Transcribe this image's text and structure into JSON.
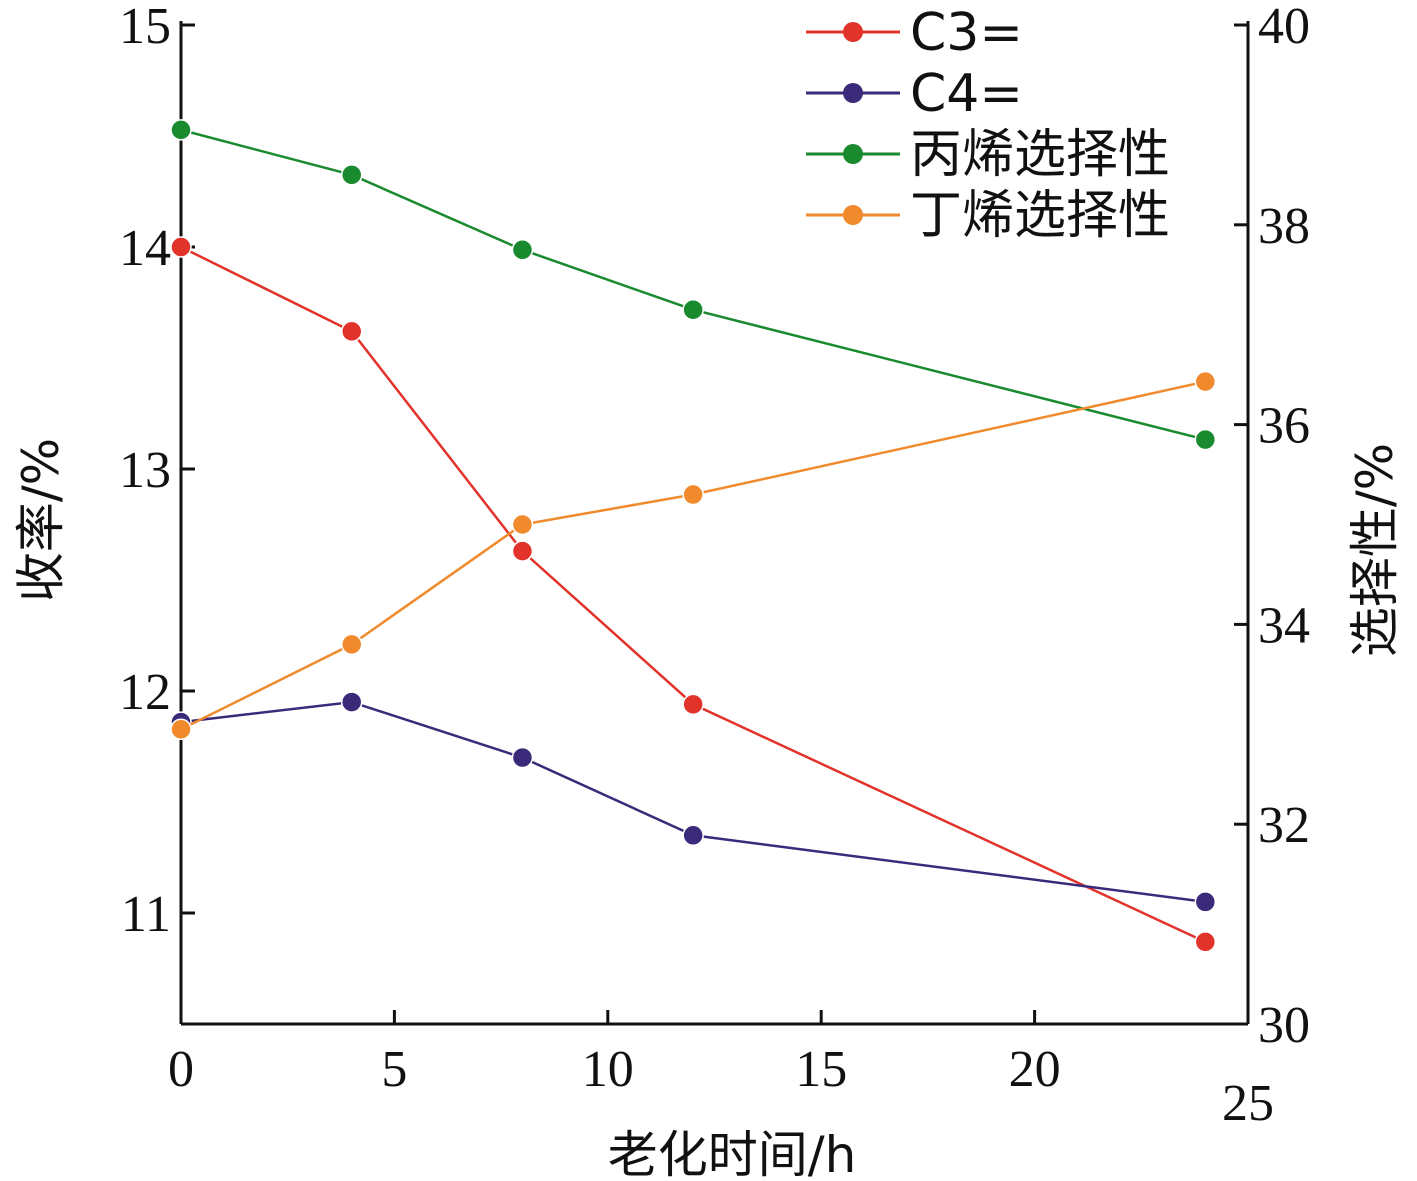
{
  "chart_data": {
    "type": "line",
    "xlabel": "老化时间/h",
    "ylabel_left": "收率/%",
    "ylabel_right": "选择性/%",
    "x_ticks": [
      0,
      5,
      10,
      15,
      20,
      25
    ],
    "y_left_ticks": [
      11,
      12,
      13,
      14,
      15
    ],
    "y_right_ticks": [
      30,
      32,
      34,
      36,
      38,
      40
    ],
    "xlim": [
      0,
      25
    ],
    "ylim_left": [
      10.5,
      15
    ],
    "ylim_right": [
      30,
      40
    ],
    "grid": false,
    "legend_position": "top-right",
    "series": [
      {
        "name": "C3=",
        "axis": "left",
        "color": "#e2332b",
        "x": [
          0,
          4,
          8,
          12,
          24
        ],
        "y": [
          14.0,
          13.62,
          12.63,
          11.94,
          10.87
        ]
      },
      {
        "name": "C4=",
        "axis": "left",
        "color": "#3b2a7a",
        "x": [
          0,
          4,
          8,
          12,
          24
        ],
        "y": [
          11.86,
          11.95,
          11.7,
          11.35,
          11.05
        ]
      },
      {
        "name": "丙烯选择性",
        "axis": "right",
        "color": "#1a8a2e",
        "x": [
          0,
          4,
          8,
          12,
          24
        ],
        "y": [
          38.95,
          38.5,
          37.75,
          37.15,
          35.85
        ]
      },
      {
        "name": "丁烯选择性",
        "axis": "right",
        "color": "#f08a2c",
        "x": [
          0,
          4,
          8,
          12,
          24
        ],
        "y": [
          32.95,
          33.8,
          35.0,
          35.3,
          36.43
        ]
      }
    ]
  }
}
